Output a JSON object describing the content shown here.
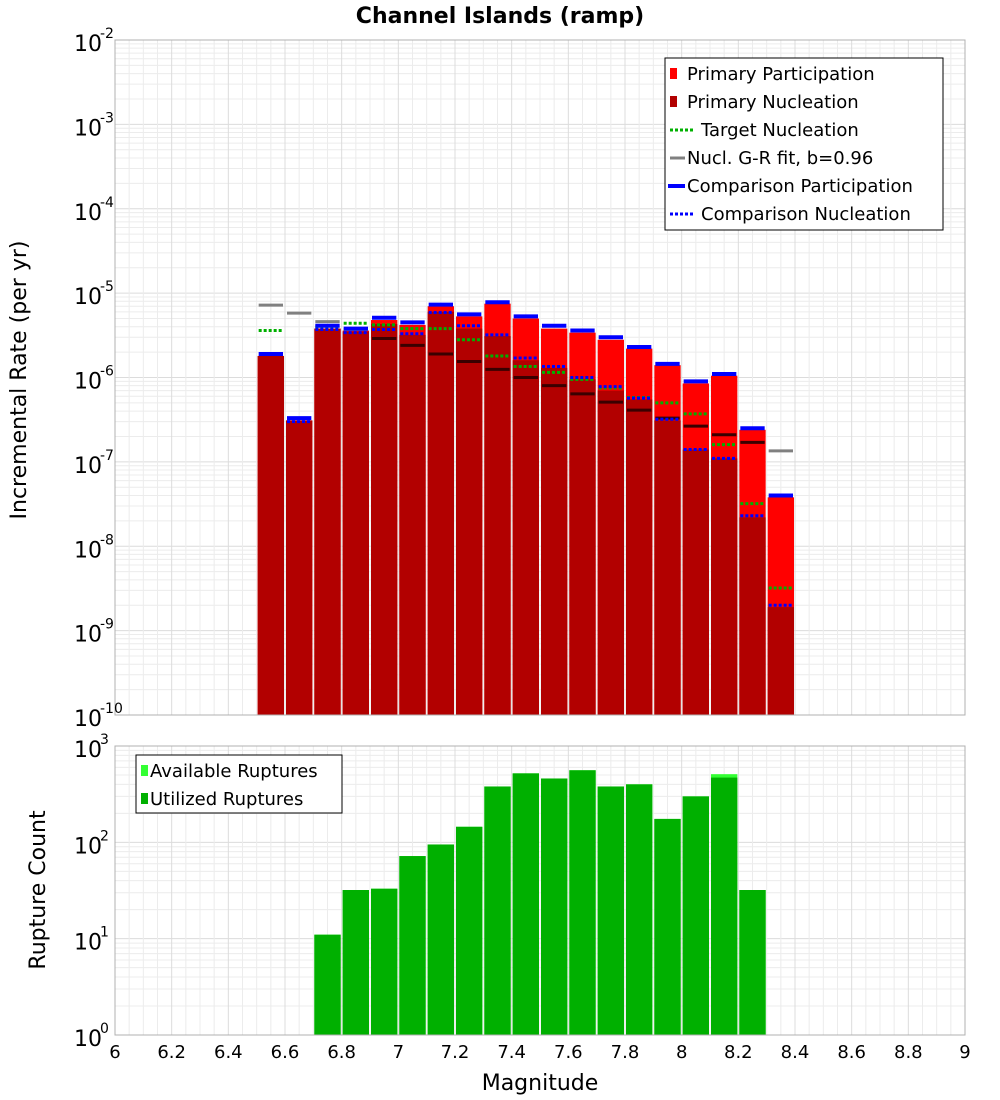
{
  "chart_data": [
    {
      "type": "bar",
      "title": "Channel Islands (ramp)",
      "ylabel": "Incremental Rate (per yr)",
      "xlabel": "",
      "xlim": [
        6,
        9
      ],
      "ylim": [
        1e-10,
        0.01
      ],
      "yscale": "log",
      "grid": true,
      "legend_position": "top-right",
      "bin_width": 0.1,
      "x": [
        6.55,
        6.65,
        6.75,
        6.85,
        6.95,
        7.05,
        7.15,
        7.25,
        7.35,
        7.45,
        7.55,
        7.65,
        7.75,
        7.85,
        7.95,
        8.05,
        8.15,
        8.25,
        8.35,
        8.45
      ],
      "series": [
        {
          "name": "Primary Participation",
          "color": "#ff0000",
          "style": "bar",
          "values": [
            1.8e-06,
            3.1e-07,
            3.8e-06,
            3.6e-06,
            4.8e-06,
            4.2e-06,
            7e-06,
            5.3e-06,
            7.5e-06,
            5e-06,
            3.8e-06,
            3.4e-06,
            2.8e-06,
            2.2e-06,
            1.4e-06,
            8.5e-07,
            1.05e-06,
            2.4e-07,
            3.8e-08,
            null
          ]
        },
        {
          "name": "Primary Nucleation",
          "color": "#b20000",
          "style": "bar",
          "values": [
            1.8e-06,
            3.1e-07,
            3.8e-06,
            3.5e-06,
            4.3e-06,
            3.2e-06,
            6e-06,
            3.8e-06,
            3.1e-06,
            1.6e-06,
            1.3e-06,
            9.5e-07,
            7e-07,
            5.5e-07,
            3.1e-07,
            1.4e-07,
            1.1e-07,
            2.2e-08,
            1.9e-09,
            null
          ]
        },
        {
          "name": "Target Nucleation",
          "color": "#00b000",
          "style": "dotted",
          "values": [
            3.6e-06,
            null,
            4e-06,
            4.4e-06,
            4.2e-06,
            3.8e-06,
            3.8e-06,
            2.8e-06,
            1.8e-06,
            1.35e-06,
            1.15e-06,
            9.5e-07,
            7.5e-07,
            5.8e-07,
            5e-07,
            3.7e-07,
            1.6e-07,
            3.2e-08,
            3.2e-09,
            null
          ]
        },
        {
          "name": "Nucl. G-R fit, b=0.96",
          "color": "#808080",
          "style": "solid",
          "values": [
            7.2e-06,
            5.8e-06,
            4.6e-06,
            3.7e-06,
            2.9e-06,
            2.4e-06,
            1.9e-06,
            1.55e-06,
            1.25e-06,
            1e-06,
            8e-07,
            6.4e-07,
            5.1e-07,
            4.1e-07,
            3.3e-07,
            2.65e-07,
            2.1e-07,
            1.7e-07,
            1.35e-07,
            null
          ]
        },
        {
          "name": "Comparison Participation",
          "color": "#0000ff",
          "style": "solid",
          "values": [
            1.9e-06,
            3.3e-07,
            4.1e-06,
            3.8e-06,
            5.1e-06,
            4.5e-06,
            7.3e-06,
            5.6e-06,
            7.8e-06,
            5.3e-06,
            4.1e-06,
            3.6e-06,
            3e-06,
            2.3e-06,
            1.45e-06,
            9e-07,
            1.1e-06,
            2.5e-07,
            4e-08,
            null
          ]
        },
        {
          "name": "Comparison Nucleation",
          "color": "#0000ff",
          "style": "dotted",
          "values": [
            null,
            3e-07,
            3.7e-06,
            3.4e-06,
            3.7e-06,
            3.3e-06,
            5.9e-06,
            4.1e-06,
            3.2e-06,
            1.7e-06,
            1.35e-06,
            1e-06,
            7.8e-07,
            5.7e-07,
            3.2e-07,
            1.4e-07,
            1.1e-07,
            2.3e-08,
            2e-09,
            null
          ]
        }
      ],
      "yticks": [
        {
          "base": "10",
          "exp": "-2"
        },
        {
          "base": "10",
          "exp": "-3"
        },
        {
          "base": "10",
          "exp": "-4"
        },
        {
          "base": "10",
          "exp": "-5"
        },
        {
          "base": "10",
          "exp": "-6"
        },
        {
          "base": "10",
          "exp": "-7"
        },
        {
          "base": "10",
          "exp": "-8"
        },
        {
          "base": "10",
          "exp": "-9"
        },
        {
          "base": "10",
          "exp": "-10"
        }
      ]
    },
    {
      "type": "bar",
      "title": "",
      "ylabel": "Rupture Count",
      "xlabel": "Magnitude",
      "xlim": [
        6,
        9
      ],
      "ylim": [
        1,
        1000
      ],
      "yscale": "log",
      "grid": true,
      "legend_position": "top-left",
      "bin_width": 0.1,
      "x": [
        6.75,
        6.85,
        6.95,
        7.05,
        7.15,
        7.25,
        7.35,
        7.45,
        7.55,
        7.65,
        7.75,
        7.85,
        7.95,
        8.05,
        8.15,
        8.25
      ],
      "series": [
        {
          "name": "Available Ruptures",
          "color": "#33ff33",
          "style": "bar",
          "values": [
            11,
            32,
            33,
            72,
            95,
            145,
            380,
            520,
            460,
            560,
            380,
            400,
            175,
            300,
            510,
            32
          ]
        },
        {
          "name": "Utilized Ruptures",
          "color": "#00b000",
          "style": "bar",
          "values": [
            11,
            32,
            33,
            72,
            95,
            145,
            380,
            520,
            460,
            560,
            380,
            400,
            175,
            300,
            470,
            32
          ]
        }
      ],
      "yticks": [
        {
          "base": "10",
          "exp": "3"
        },
        {
          "base": "10",
          "exp": "2"
        },
        {
          "base": "10",
          "exp": "1"
        },
        {
          "base": "10",
          "exp": "0"
        }
      ],
      "xticks": [
        "6",
        "6.2",
        "6.4",
        "6.6",
        "6.8",
        "7",
        "7.2",
        "7.4",
        "7.6",
        "7.8",
        "8",
        "8.2",
        "8.4",
        "8.6",
        "8.8",
        "9"
      ]
    }
  ]
}
